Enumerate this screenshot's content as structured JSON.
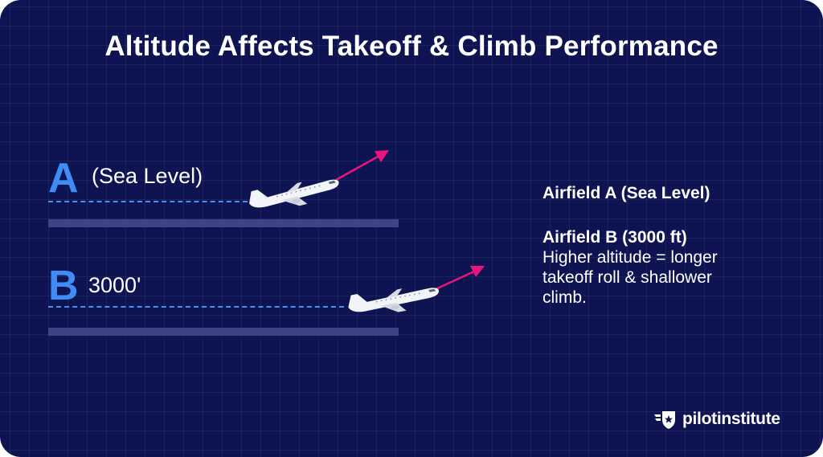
{
  "title": "Altitude Affects Takeoff & Climb Performance",
  "airfield_a": {
    "letter": "A",
    "label": "(Sea Level)"
  },
  "airfield_b": {
    "letter": "B",
    "label": "3000'"
  },
  "legend": {
    "a_title": "Airfield A (Sea Level)",
    "b_title": "Airfield B (3000 ft)",
    "b_desc": "Higher altitude = longer takeoff roll & shallower climb."
  },
  "brand": {
    "name": "pilotinstitute",
    "icon": "winged-shield-star-icon"
  },
  "colors": {
    "background": "#0e1451",
    "letter_accent": "#3f8cf5",
    "dash_line": "#4a90f0",
    "runway": "#3b4585",
    "climb_arrow": "#e8157f",
    "text": "#ffffff"
  }
}
